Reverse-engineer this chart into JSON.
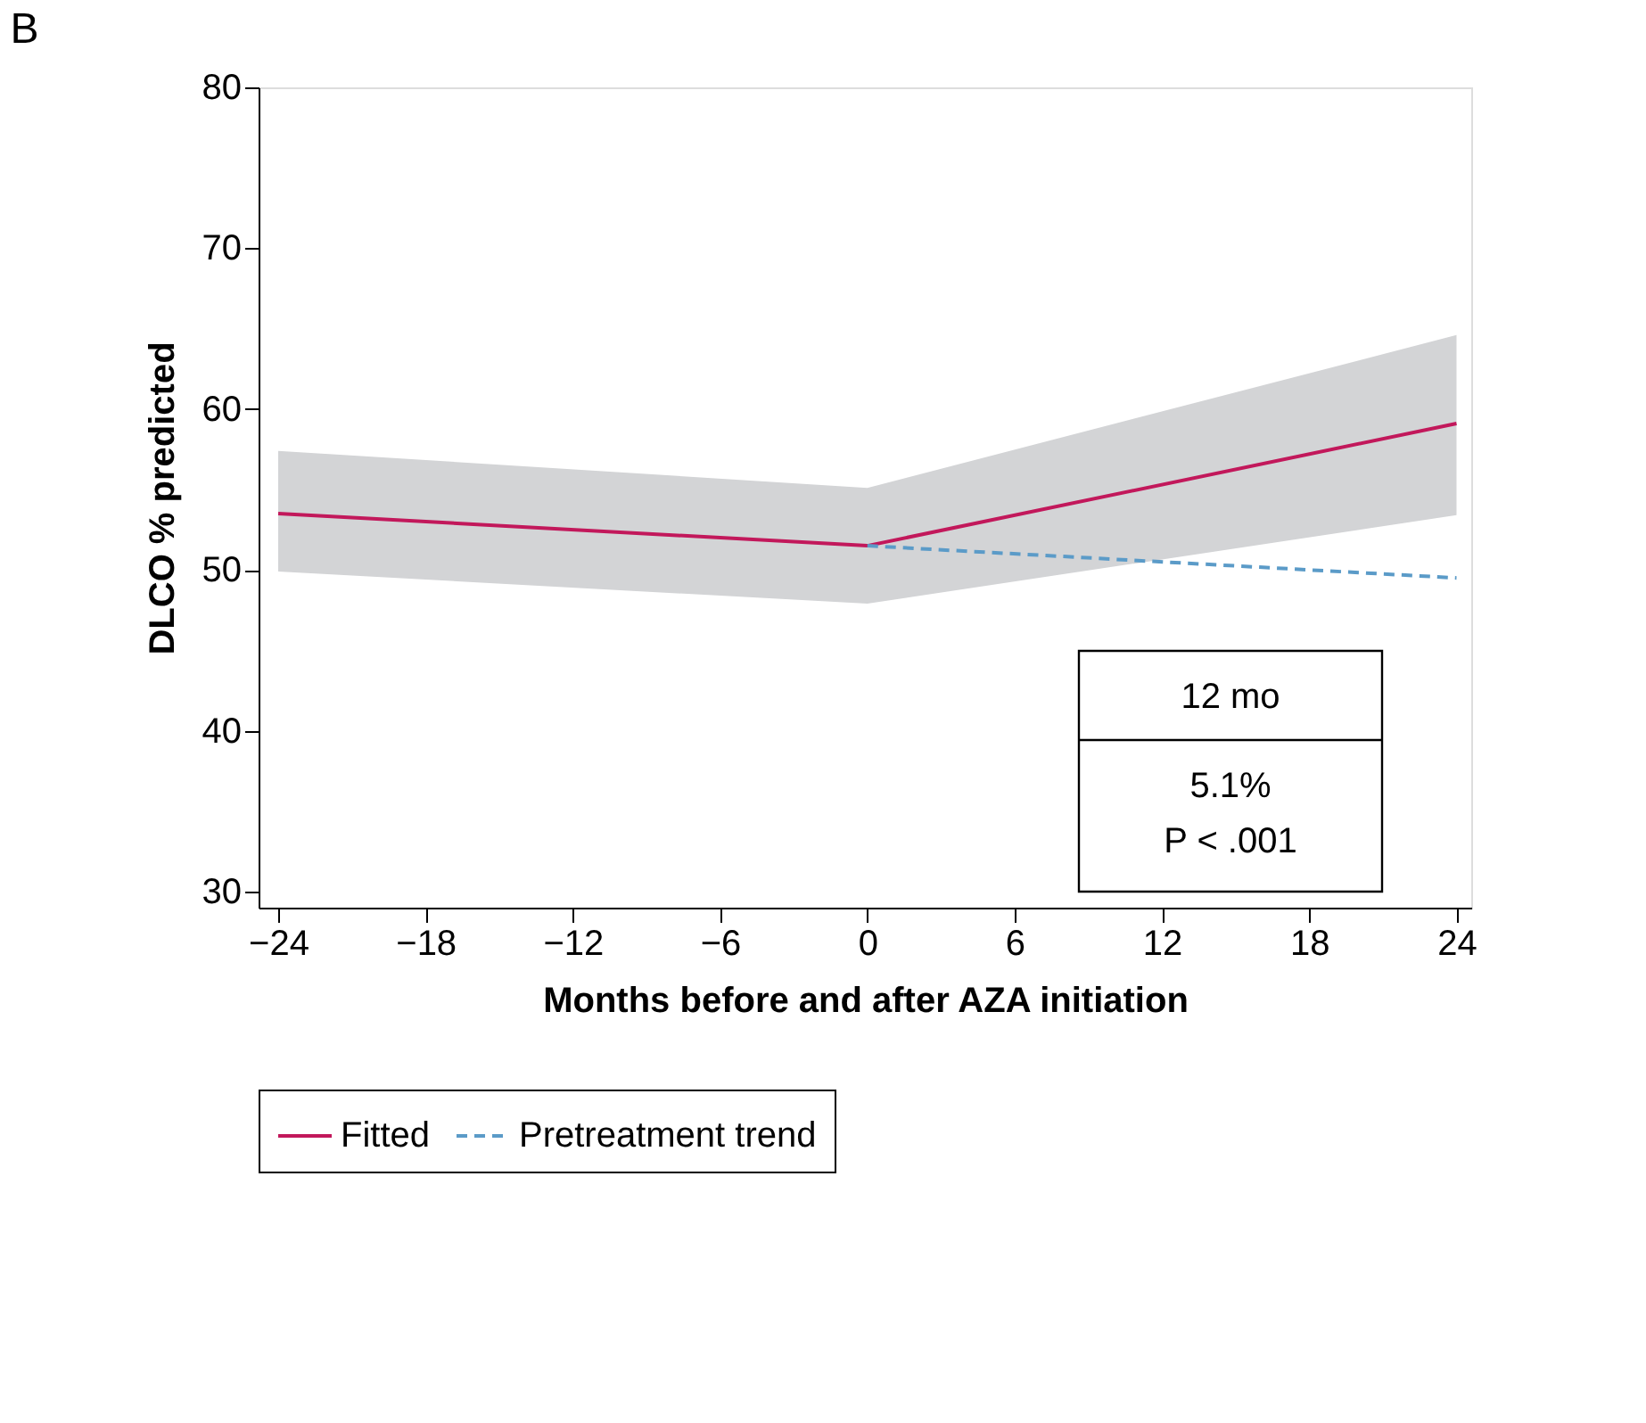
{
  "chart_data": {
    "type": "line",
    "title": "B",
    "xlabel": "Months before and after AZA initiation",
    "ylabel": "DLCO % predicted",
    "xlim": [
      -24.8,
      24.6
    ],
    "xticks": [
      -24,
      -18,
      -12,
      -6,
      0,
      6,
      12,
      18,
      24
    ],
    "ylim": [
      29,
      80
    ],
    "yticks": [
      30,
      40,
      50,
      60,
      70,
      80
    ],
    "grid": false,
    "legend": "bottom",
    "marker": "none",
    "series": [
      {
        "name": "Fitted",
        "color": "#c2185b",
        "line_style": "solid",
        "x": [
          -24,
          0,
          24
        ],
        "values": [
          53.5,
          51.5,
          59.1
        ],
        "lower": [
          49.9,
          47.9,
          53.4
        ],
        "upper": [
          57.4,
          55.1,
          64.6
        ]
      },
      {
        "name": "Pretreatment trend",
        "color": "#5b9bc8",
        "line_style": "dashed",
        "x": [
          0,
          24
        ],
        "values": [
          51.5,
          49.5
        ]
      }
    ],
    "annotations": [
      "12 mo",
      "5.1%",
      "P < .001"
    ]
  }
}
